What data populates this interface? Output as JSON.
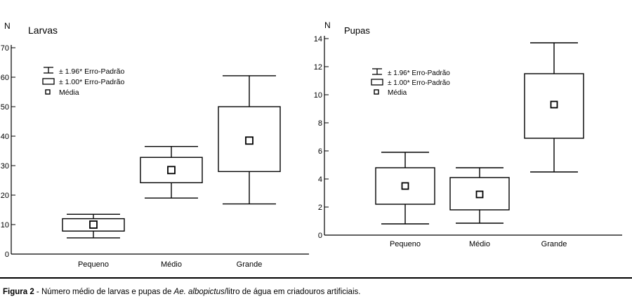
{
  "chart_data": [
    {
      "type": "box",
      "title": "Larvas",
      "ylabel": "N",
      "ylim": [
        0,
        70
      ],
      "yticks": [
        0,
        10,
        20,
        30,
        40,
        50,
        60,
        70
      ],
      "categories": [
        "Pequeno",
        "Médio",
        "Grande"
      ],
      "legend": {
        "placement": "top-left",
        "entries": [
          "± 1.96* Erro-Padrão",
          "± 1.00* Erro-Padrão",
          "Média"
        ]
      },
      "stats": [
        {
          "category": "Pequeno",
          "mean": 10,
          "se1_low": 7.8,
          "se1_high": 12,
          "se196_low": 5.5,
          "se196_high": 13.5
        },
        {
          "category": "Médio",
          "mean": 28.5,
          "se1_low": 24.2,
          "se1_high": 32.8,
          "se196_low": 19,
          "se196_high": 36.5
        },
        {
          "category": "Grande",
          "mean": 38.5,
          "se1_low": 28,
          "se1_high": 50,
          "se196_low": 17,
          "se196_high": 60.5
        }
      ]
    },
    {
      "type": "box",
      "title": "Pupas",
      "ylabel": "N",
      "ylim": [
        0,
        14
      ],
      "yticks": [
        0,
        2,
        4,
        6,
        8,
        10,
        12,
        14
      ],
      "categories": [
        "Pequeno",
        "Médio",
        "Grande"
      ],
      "legend": {
        "placement": "top-left",
        "entries": [
          "± 1.96* Erro-Padrão",
          "± 1.00* Erro-Padrão",
          "Média"
        ]
      },
      "stats": [
        {
          "category": "Pequeno",
          "mean": 3.5,
          "se1_low": 2.2,
          "se1_high": 4.8,
          "se196_low": 0.8,
          "se196_high": 5.9
        },
        {
          "category": "Médio",
          "mean": 2.9,
          "se1_low": 1.8,
          "se1_high": 4.1,
          "se196_low": 0.85,
          "se196_high": 4.8
        },
        {
          "category": "Grande",
          "mean": 9.3,
          "se1_low": 6.9,
          "se1_high": 11.5,
          "se196_low": 4.5,
          "se196_high": 13.7
        }
      ]
    }
  ],
  "caption": {
    "lead": "Figura 2",
    "text_before": " - Número médio de larvas e pupas de ",
    "species": "Ae. albopictus",
    "text_after": "/litro de água em criadouros artificiais."
  }
}
